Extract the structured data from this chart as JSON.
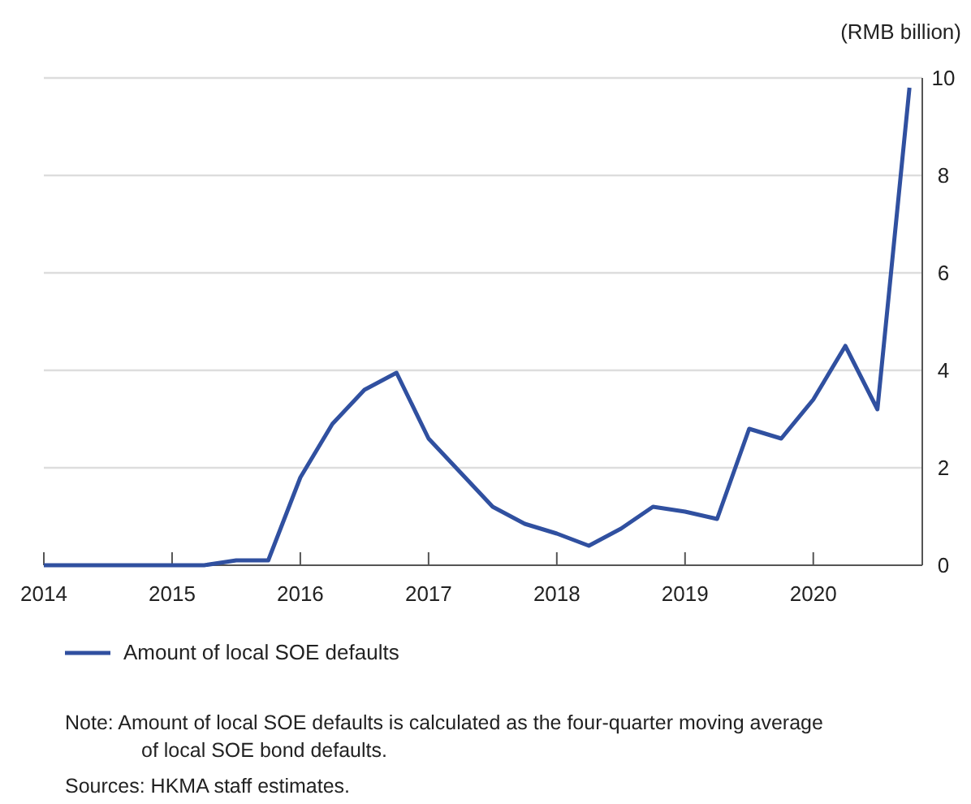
{
  "chart_data": {
    "type": "line",
    "ylabel": "(RMB billion)",
    "x": [
      2014,
      2014.25,
      2014.5,
      2014.75,
      2015,
      2015.25,
      2015.5,
      2015.75,
      2016,
      2016.25,
      2016.5,
      2016.75,
      2017,
      2017.25,
      2017.5,
      2017.75,
      2018,
      2018.25,
      2018.5,
      2018.75,
      2019,
      2019.25,
      2019.5,
      2019.75,
      2020,
      2020.25,
      2020.5,
      2020.75
    ],
    "series": [
      {
        "name": "Amount of local SOE defaults",
        "color": "#3050a0",
        "values": [
          0,
          0,
          0,
          0,
          0,
          0,
          0.1,
          0.1,
          1.8,
          2.9,
          3.6,
          3.95,
          2.6,
          1.9,
          1.2,
          0.85,
          0.65,
          0.4,
          0.75,
          1.2,
          1.1,
          0.95,
          2.8,
          2.6,
          3.4,
          4.5,
          3.2,
          9.8
        ]
      }
    ],
    "xlim": [
      2014,
      2020.85
    ],
    "xticks": [
      2014,
      2015,
      2016,
      2017,
      2018,
      2019,
      2020
    ],
    "ylim": [
      0,
      10
    ],
    "yticks": [
      0,
      2,
      4,
      6,
      8,
      10
    ],
    "grid": "y",
    "legend": "bottom",
    "marker": "none",
    "line_style": "solid",
    "annotations": [
      "Note:   Amount of local SOE defaults is calculated as the four-quarter moving average of local SOE bond defaults.",
      "Sources: HKMA staff estimates."
    ]
  }
}
